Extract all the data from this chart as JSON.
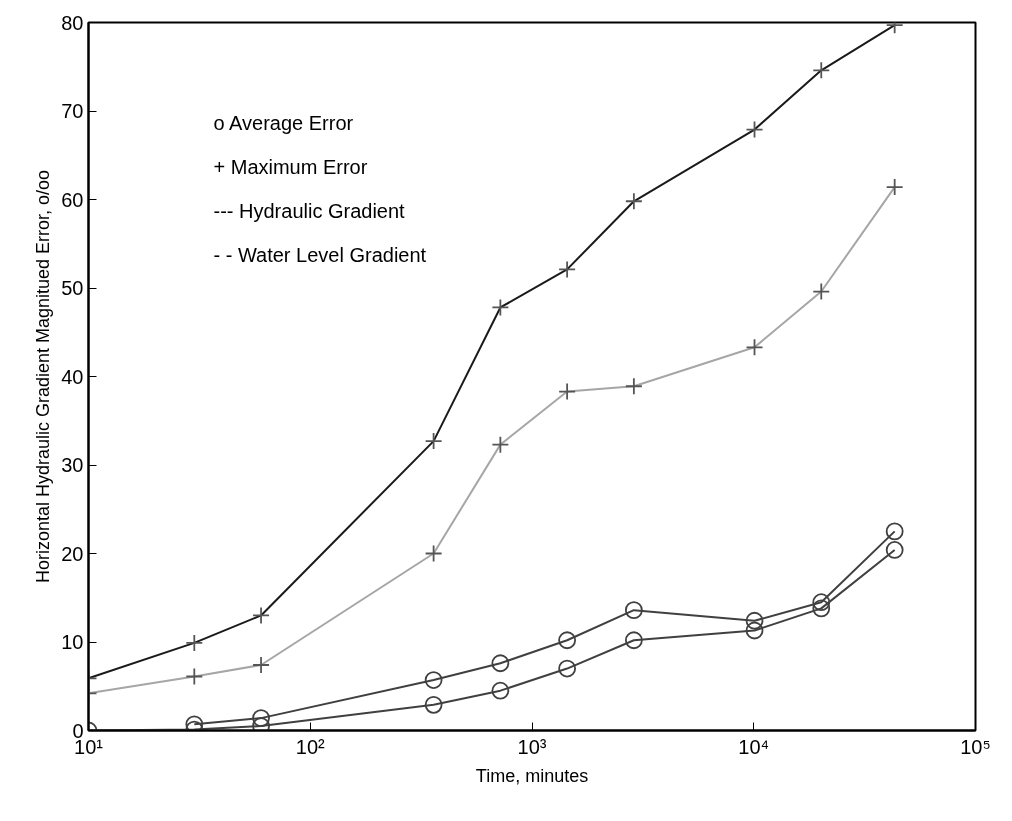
{
  "chart_data": {
    "type": "line",
    "xlabel": "Time, minutes",
    "ylabel": "Horizontal Hydraulic Gradient Magnitued Error, o/oo",
    "log": "x",
    "grid": false,
    "line_style": "solid",
    "xlim": [
      10,
      100000
    ],
    "xticks": [
      {
        "value": 10,
        "label": "10¹"
      },
      {
        "value": 100,
        "label": "10²"
      },
      {
        "value": 1000,
        "label": "10³"
      },
      {
        "value": 10000,
        "label": "10⁴"
      },
      {
        "value": 100000,
        "label": "10⁵"
      }
    ],
    "ylim": [
      0,
      80
    ],
    "yticks": [
      0,
      10,
      20,
      30,
      40,
      50,
      60,
      70,
      80
    ],
    "x": [
      10,
      30,
      60,
      360,
      720,
      1440,
      2880,
      10080,
      20160,
      43200
    ],
    "series": [
      {
        "color": "#1a1a1a",
        "marker": "cross",
        "values": [
          5.9,
          9.9,
          13.0,
          32.7,
          47.8,
          52.1,
          59.8,
          67.9,
          74.6,
          79.7
        ]
      },
      {
        "color": "#a6a6a6",
        "marker": "cross",
        "values": [
          4.2,
          6.1,
          7.4,
          20.0,
          32.3,
          38.3,
          38.9,
          43.3,
          49.6,
          61.4
        ]
      },
      {
        "color": "#404040",
        "marker": "circle",
        "values": [
          null,
          0.7,
          1.4,
          5.7,
          7.6,
          10.2,
          13.6,
          12.4,
          14.5,
          22.5
        ]
      },
      {
        "color": "#404040",
        "marker": "circle",
        "values": [
          0.0,
          0.1,
          0.5,
          2.9,
          4.5,
          7.0,
          10.2,
          11.3,
          13.8,
          20.4
        ]
      }
    ],
    "annotations": [
      "o   Average Error",
      "+   Maximum Error",
      "--- Hydraulic Gradient",
      "- - Water Level Gradient"
    ]
  }
}
